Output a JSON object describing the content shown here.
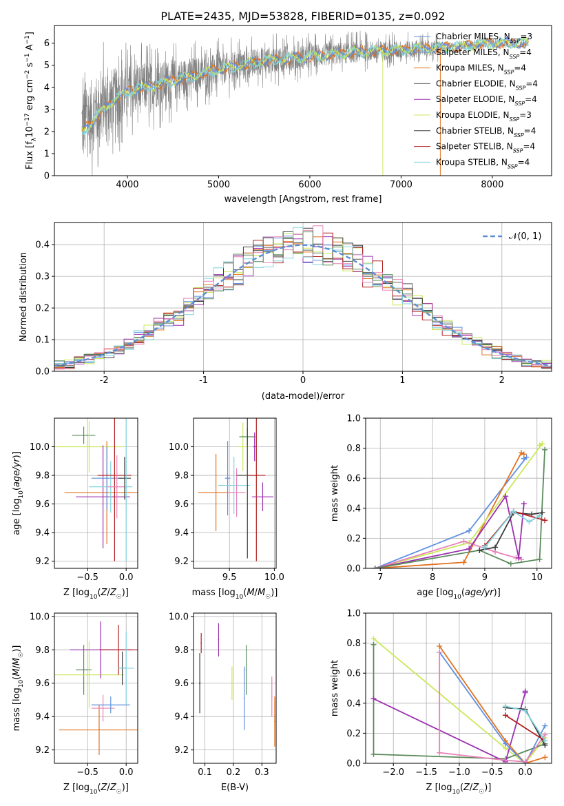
{
  "figure": {
    "title": "PLATE=2435, MJD=53828, FIBERID=0135, z=0.092"
  },
  "colors": {
    "chabrier_miles": "#1f4fbf",
    "salpeter_miles": "#5f8fdf",
    "kroupa_miles": "#e2711d",
    "chabrier_elodie": "#5a5a5a",
    "salpeter_elodie": "#9b30b0",
    "kroupa_elodie": "#c9e85a",
    "chabrier_stelib": "#3a3a3a",
    "salpeter_stelib": "#b01e1e",
    "kroupa_stelib": "#7fd3dd",
    "spectrum": "#808080",
    "pink": "#e882b8",
    "green": "#5a8a5a",
    "normal": "#5b8ed6",
    "grid": "#b0b0b0"
  },
  "chart_data": [
    {
      "id": "spectrum",
      "type": "line",
      "title": "PLATE=2435, MJD=53828, FIBERID=0135, z=0.092",
      "xlabel": "wavelength [Angstrom, rest frame]",
      "ylabel": "Flux [f_λ 10^-17 erg cm^-2 s^-1 A^-1]",
      "xlim": [
        3200,
        8650
      ],
      "ylim": [
        0,
        6.8
      ],
      "xticks": [
        4000,
        5000,
        6000,
        7000,
        8000
      ],
      "yticks": [
        0,
        1,
        2,
        3,
        4,
        5,
        6
      ],
      "grid": false,
      "legend_position": "right",
      "legend": [
        {
          "label": "Chabrier MILES, N",
          "sub": "SSP",
          "tail": "=3",
          "color_key": "salpeter_miles"
        },
        {
          "label": "Salpeter MILES, N",
          "sub": "SSP",
          "tail": "=4",
          "color_key": "salpeter_miles"
        },
        {
          "label": "Kroupa MILES, N",
          "sub": "SSP",
          "tail": "=4",
          "color_key": "kroupa_miles"
        },
        {
          "label": "Chabrier ELODIE, N",
          "sub": "SSP",
          "tail": "=4",
          "color_key": "chabrier_elodie"
        },
        {
          "label": "Salpeter ELODIE, N",
          "sub": "SSP",
          "tail": "=4",
          "color_key": "salpeter_elodie"
        },
        {
          "label": "Kroupa ELODIE, N",
          "sub": "SSP",
          "tail": "=3",
          "color_key": "kroupa_elodie"
        },
        {
          "label": "Chabrier STELIB, N",
          "sub": "SSP",
          "tail": "=4",
          "color_key": "chabrier_stelib"
        },
        {
          "label": "Salpeter STELIB, N",
          "sub": "SSP",
          "tail": "=4",
          "color_key": "salpeter_stelib"
        },
        {
          "label": "Kroupa STELIB, N",
          "sub": "SSP",
          "tail": "=4",
          "color_key": "kroupa_stelib"
        }
      ],
      "continuum": {
        "x": [
          3500,
          3800,
          4000,
          4300,
          4600,
          5000,
          5500,
          6000,
          6500,
          7000,
          7500,
          8000,
          8400
        ],
        "y": [
          2.3,
          3.4,
          3.8,
          4.1,
          4.4,
          4.8,
          5.2,
          5.4,
          5.6,
          5.7,
          5.8,
          6.0,
          6.0
        ]
      },
      "noise_amplitude": {
        "x": [
          3500,
          4000,
          5000,
          6000,
          7000,
          7400
        ],
        "y": [
          3.0,
          2.0,
          1.2,
          0.9,
          0.7,
          0.6
        ]
      },
      "spikes": [
        {
          "x": 6800,
          "y_min": 0
        },
        {
          "x": 7430,
          "y_min": 0
        }
      ]
    },
    {
      "id": "residuals",
      "type": "step",
      "xlabel": "(data-model)/error",
      "ylabel": "Normed distribution",
      "xlim": [
        -2.5,
        2.5
      ],
      "ylim": [
        0,
        0.47
      ],
      "xticks": [
        -2,
        -1,
        0,
        1,
        2
      ],
      "yticks": [
        0.0,
        0.1,
        0.2,
        0.3,
        0.4
      ],
      "grid": true,
      "legend_position": "top-right",
      "reference_curve": {
        "name": "𝒩(0, 1)",
        "mean": 0,
        "sigma": 1
      },
      "bin_width": 0.1
    },
    {
      "id": "age-vs-z",
      "type": "errorbar",
      "xlabel": "Z [log10(Z/Z☉)]",
      "ylabel": "age [log10(age/yr)]",
      "xlim": [
        -0.93,
        0.15
      ],
      "ylim": [
        9.15,
        10.2
      ],
      "xticks": [
        -0.5,
        0.0
      ],
      "yticks": [
        9.2,
        9.4,
        9.6,
        9.8,
        10.0
      ],
      "grid": true,
      "points": [
        {
          "x": -0.55,
          "y": 10.08,
          "xerr": 0.15,
          "yerr": 0.06,
          "color_key": "green"
        },
        {
          "x": -0.48,
          "y": 10.0,
          "xerr": 0.45,
          "yerr": 0.18,
          "color_key": "kroupa_elodie"
        },
        {
          "x": -0.3,
          "y": 9.65,
          "xerr": 0.35,
          "yerr": 0.36,
          "color_key": "salpeter_elodie"
        },
        {
          "x": -0.25,
          "y": 9.68,
          "xerr": 0.55,
          "yerr": 0.36,
          "color_key": "kroupa_miles"
        },
        {
          "x": -0.25,
          "y": 9.78,
          "xerr": 0.2,
          "yerr": 0.22,
          "color_key": "salpeter_miles"
        },
        {
          "x": -0.2,
          "y": 9.72,
          "xerr": 0.28,
          "yerr": 0.18,
          "color_key": "kroupa_stelib"
        },
        {
          "x": -0.15,
          "y": 9.8,
          "xerr": 0.22,
          "yerr": 0.6,
          "color_key": "salpeter_stelib"
        },
        {
          "x": -0.12,
          "y": 9.72,
          "xerr": 0.12,
          "yerr": 0.22,
          "color_key": "pink"
        },
        {
          "x": -0.02,
          "y": 9.78,
          "xerr": 0.08,
          "yerr": 0.15,
          "color_key": "chabrier_stelib"
        },
        {
          "x": 0.0,
          "y": 9.72,
          "xerr": 0.02,
          "yerr": 0.52,
          "color_key": "kroupa_stelib"
        }
      ]
    },
    {
      "id": "age-vs-mass",
      "type": "errorbar",
      "xlabel": "mass [log10(M/M☉)]",
      "xlim": [
        9.1,
        10.02
      ],
      "ylim": [
        9.15,
        10.2
      ],
      "xticks": [
        9.5,
        10.0
      ],
      "yticks": [
        9.2,
        9.4,
        9.6,
        9.8,
        10.0
      ],
      "grid": true,
      "points": [
        {
          "x": 9.35,
          "y": 9.68,
          "xerr": 0.2,
          "yerr": 0.27,
          "color_key": "kroupa_miles"
        },
        {
          "x": 9.48,
          "y": 9.78,
          "xerr": 0.03,
          "yerr": 0.26,
          "color_key": "salpeter_miles"
        },
        {
          "x": 9.55,
          "y": 9.73,
          "xerr": 0.18,
          "yerr": 0.2,
          "color_key": "kroupa_stelib"
        },
        {
          "x": 9.58,
          "y": 9.68,
          "xerr": 0.1,
          "yerr": 0.17,
          "color_key": "pink"
        },
        {
          "x": 9.65,
          "y": 10.0,
          "xerr": 0.05,
          "yerr": 0.17,
          "color_key": "kroupa_elodie"
        },
        {
          "x": 9.7,
          "y": 10.07,
          "xerr": 0.09,
          "yerr": 0.06,
          "color_key": "green"
        },
        {
          "x": 9.7,
          "y": 9.8,
          "xerr": 0.12,
          "yerr": 0.58,
          "color_key": "chabrier_stelib"
        },
        {
          "x": 9.8,
          "y": 9.8,
          "xerr": 0.1,
          "yerr": 0.6,
          "color_key": "salpeter_stelib"
        },
        {
          "x": 9.78,
          "y": 10.0,
          "xerr": 0.02,
          "yerr": 0.1,
          "color_key": "salpeter_elodie"
        },
        {
          "x": 9.87,
          "y": 9.65,
          "xerr": 0.12,
          "yerr": 0.1,
          "color_key": "salpeter_elodie"
        }
      ]
    },
    {
      "id": "mass-weight-vs-age",
      "type": "line",
      "xlabel": "age [log10(age/yr)]",
      "ylabel": "mass weight",
      "xlim": [
        6.72,
        10.28
      ],
      "ylim": [
        0,
        1.0
      ],
      "xticks": [
        7,
        8,
        9,
        10
      ],
      "yticks": [
        0.0,
        0.2,
        0.4,
        0.6,
        0.8,
        1.0
      ],
      "grid": true,
      "series": [
        {
          "color_key": "salpeter_miles",
          "x": [
            6.9,
            8.7,
            9.8,
            9.75
          ],
          "y": [
            0.0,
            0.25,
            0.74,
            0.73
          ]
        },
        {
          "color_key": "kroupa_miles",
          "x": [
            6.9,
            8.6,
            9.7,
            9.75
          ],
          "y": [
            0.0,
            0.04,
            0.77,
            0.76
          ]
        },
        {
          "color_key": "kroupa_elodie",
          "x": [
            6.9,
            8.7,
            10.1,
            10.05
          ],
          "y": [
            0.0,
            0.17,
            0.83,
            0.82
          ]
        },
        {
          "color_key": "pink",
          "x": [
            6.9,
            8.6,
            9.2,
            9.6,
            9.7
          ],
          "y": [
            0.0,
            0.18,
            0.11,
            0.07,
            0.06
          ]
        },
        {
          "color_key": "salpeter_elodie",
          "x": [
            6.9,
            8.7,
            9.4,
            9.65,
            9.75
          ],
          "y": [
            0.0,
            0.13,
            0.48,
            0.07,
            0.43
          ]
        },
        {
          "color_key": "green",
          "x": [
            6.9,
            8.9,
            9.5,
            10.05,
            10.15
          ],
          "y": [
            0.0,
            0.12,
            0.03,
            0.06,
            0.79
          ]
        },
        {
          "color_key": "chabrier_stelib",
          "x": [
            8.9,
            9.2,
            9.55,
            9.9,
            10.1
          ],
          "y": [
            0.12,
            0.14,
            0.37,
            0.36,
            0.37
          ]
        },
        {
          "color_key": "salpeter_stelib",
          "x": [
            9.0,
            9.55,
            10.15
          ],
          "y": [
            0.15,
            0.38,
            0.32
          ]
        },
        {
          "color_key": "kroupa_stelib",
          "x": [
            9.0,
            9.55,
            9.85,
            10.05
          ],
          "y": [
            0.14,
            0.38,
            0.31,
            0.35
          ]
        }
      ]
    },
    {
      "id": "mass-vs-z",
      "type": "errorbar",
      "xlabel": "Z [log10(Z/Z☉)]",
      "ylabel": "mass [log10(M/M☉)]",
      "xlim": [
        -0.93,
        0.15
      ],
      "ylim": [
        9.12,
        10.02
      ],
      "xticks": [
        -0.5,
        0.0
      ],
      "yticks": [
        9.2,
        9.4,
        9.6,
        9.8,
        10.0
      ],
      "grid": true,
      "points": [
        {
          "x": -0.55,
          "y": 9.68,
          "xerr": 0.1,
          "yerr": 0.15,
          "color_key": "green"
        },
        {
          "x": -0.48,
          "y": 9.65,
          "xerr": 0.45,
          "yerr": 0.2,
          "color_key": "kroupa_elodie"
        },
        {
          "x": -0.33,
          "y": 9.8,
          "xerr": 0.4,
          "yerr": 0.17,
          "color_key": "salpeter_elodie"
        },
        {
          "x": -0.35,
          "y": 9.32,
          "xerr": 0.52,
          "yerr": 0.15,
          "color_key": "kroupa_miles"
        },
        {
          "x": -0.3,
          "y": 9.45,
          "xerr": 0.15,
          "yerr": 0.08,
          "color_key": "pink"
        },
        {
          "x": -0.2,
          "y": 9.47,
          "xerr": 0.25,
          "yerr": 0.05,
          "color_key": "salpeter_miles"
        },
        {
          "x": -0.1,
          "y": 9.8,
          "xerr": 0.25,
          "yerr": 0.15,
          "color_key": "salpeter_stelib"
        },
        {
          "x": -0.05,
          "y": 9.69,
          "xerr": 0.05,
          "yerr": 0.1,
          "color_key": "chabrier_stelib"
        },
        {
          "x": 0.0,
          "y": 9.69,
          "xerr": 0.1,
          "yerr": 0.22,
          "color_key": "kroupa_stelib"
        }
      ]
    },
    {
      "id": "mass-vs-ebv",
      "type": "errorbar",
      "xlabel": "E(B-V)",
      "xlim": [
        0.06,
        0.35
      ],
      "ylim": [
        9.12,
        10.02
      ],
      "xticks": [
        0.1,
        0.2,
        0.3
      ],
      "yticks": [
        9.2,
        9.4,
        9.6,
        9.8,
        10.0
      ],
      "grid": true,
      "points": [
        {
          "x": 0.082,
          "y": 9.6,
          "xerr": 0.003,
          "yerr": 0.18,
          "color_key": "chabrier_stelib"
        },
        {
          "x": 0.087,
          "y": 9.84,
          "xerr": 0.002,
          "yerr": 0.06,
          "color_key": "salpeter_stelib"
        },
        {
          "x": 0.148,
          "y": 9.86,
          "xerr": 0.002,
          "yerr": 0.1,
          "color_key": "salpeter_elodie"
        },
        {
          "x": 0.195,
          "y": 9.6,
          "xerr": 0.002,
          "yerr": 0.1,
          "color_key": "kroupa_elodie"
        },
        {
          "x": 0.238,
          "y": 9.51,
          "xerr": 0.002,
          "yerr": 0.19,
          "color_key": "salpeter_miles"
        },
        {
          "x": 0.245,
          "y": 9.68,
          "xerr": 0.002,
          "yerr": 0.15,
          "color_key": "green"
        },
        {
          "x": 0.335,
          "y": 9.52,
          "xerr": 0.002,
          "yerr": 0.12,
          "color_key": "pink"
        },
        {
          "x": 0.345,
          "y": 9.37,
          "xerr": 0.002,
          "yerr": 0.15,
          "color_key": "kroupa_miles"
        }
      ]
    },
    {
      "id": "mass-weight-vs-z",
      "type": "line",
      "xlabel": "Z [log10(Z/Z☉)]",
      "ylabel": "mass weight",
      "xlim": [
        -2.42,
        0.4
      ],
      "ylim": [
        0,
        1.0
      ],
      "xticks": [
        -2.0,
        -1.5,
        -1.0,
        -0.5,
        0.0
      ],
      "yticks": [
        0.0,
        0.2,
        0.4,
        0.6,
        0.8,
        1.0
      ],
      "grid": true,
      "series": [
        {
          "color_key": "kroupa_elodie",
          "x": [
            -2.3,
            -0.3,
            0.0,
            0.3
          ],
          "y": [
            0.83,
            0.1,
            0.0,
            0.17
          ]
        },
        {
          "color_key": "green",
          "x": [
            -2.3,
            -2.3,
            -0.3,
            0.3
          ],
          "y": [
            0.79,
            0.06,
            0.03,
            0.13
          ]
        },
        {
          "color_key": "salpeter_elodie",
          "x": [
            -2.3,
            -0.3,
            0.0,
            0.0
          ],
          "y": [
            0.43,
            0.01,
            0.47,
            0.48
          ]
        },
        {
          "color_key": "kroupa_miles",
          "x": [
            -1.3,
            -0.3,
            0.0,
            0.3
          ],
          "y": [
            0.78,
            0.15,
            0.0,
            0.04
          ]
        },
        {
          "color_key": "salpeter_miles",
          "x": [
            -1.3,
            -0.3,
            0.0,
            0.3
          ],
          "y": [
            0.74,
            0.13,
            0.0,
            0.25
          ]
        },
        {
          "color_key": "pink",
          "x": [
            -1.3,
            -1.3,
            -0.3,
            0.0,
            0.3
          ],
          "y": [
            0.74,
            0.07,
            0.02,
            0.01,
            0.19
          ]
        },
        {
          "color_key": "chabrier_stelib",
          "x": [
            -0.3,
            0.0,
            0.3
          ],
          "y": [
            0.37,
            0.36,
            0.12
          ]
        },
        {
          "color_key": "salpeter_stelib",
          "x": [
            -0.3,
            0.3
          ],
          "y": [
            0.32,
            0.15
          ]
        },
        {
          "color_key": "kroupa_stelib",
          "x": [
            -0.3,
            0.0,
            0.3
          ],
          "y": [
            0.38,
            0.35,
            0.15
          ]
        }
      ]
    }
  ]
}
